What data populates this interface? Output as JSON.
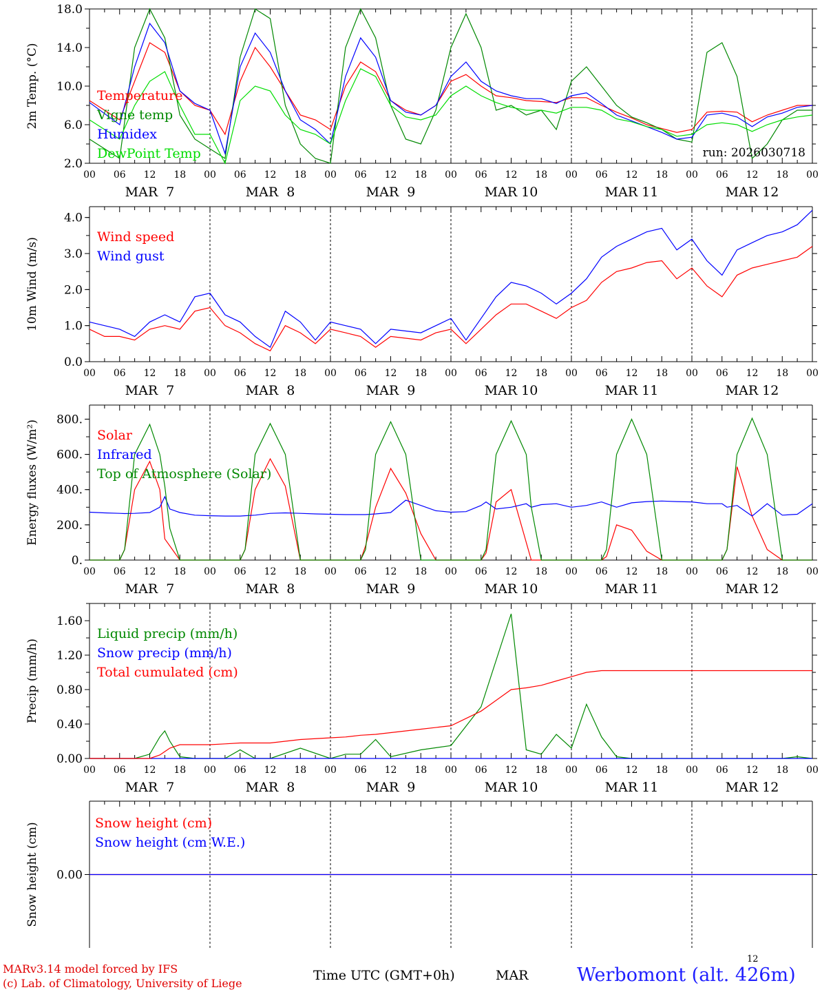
{
  "chart_data": [
    {
      "type": "line",
      "ylabel": "2m Temp. (°C)",
      "ylim": [
        2,
        18
      ],
      "yticks": [
        "2.0",
        "6.0",
        "10.0",
        "14.0",
        "18.0"
      ],
      "annotation": "run: 2026030718",
      "x_hours": [
        0,
        6,
        9,
        12,
        15,
        18,
        21,
        24,
        27,
        30,
        33,
        36,
        39,
        42,
        45,
        48,
        51,
        54,
        57,
        60,
        63,
        66,
        69,
        72,
        75,
        78,
        81,
        84,
        87,
        90,
        93,
        96,
        99,
        102,
        105,
        108,
        111,
        114,
        117,
        120,
        123,
        126,
        129,
        132,
        135,
        138,
        141,
        144
      ],
      "series": [
        {
          "name": "Temperature",
          "color": "#ff0000",
          "values": [
            8.5,
            6.5,
            10.5,
            14.5,
            13.5,
            9.5,
            8.0,
            7.5,
            5.0,
            10.5,
            14.0,
            12.0,
            9.5,
            7.0,
            6.5,
            5.5,
            10.0,
            12.5,
            11.5,
            8.5,
            7.5,
            7.0,
            8.0,
            10.5,
            11.2,
            10.0,
            9.0,
            8.8,
            8.5,
            8.4,
            8.3,
            8.8,
            8.8,
            8.0,
            7.3,
            6.7,
            6.0,
            5.6,
            5.2,
            5.5,
            7.3,
            7.4,
            7.3,
            6.3,
            7.0,
            7.5,
            8.0,
            8.0
          ]
        },
        {
          "name": "Vigne temp",
          "color": "#008800",
          "values": [
            4.5,
            2.5,
            14.0,
            18.5,
            15.0,
            7.0,
            4.5,
            3.5,
            2.5,
            13.0,
            18.5,
            17.0,
            8.0,
            4.0,
            2.5,
            1.5,
            14.0,
            18.5,
            15.0,
            8.0,
            4.5,
            4.0,
            7.5,
            14.0,
            17.5,
            14.0,
            7.5,
            8.0,
            7.0,
            7.5,
            5.5,
            10.5,
            12.0,
            10.0,
            8.0,
            6.8,
            6.2,
            5.5,
            4.5,
            4.2,
            13.5,
            14.5,
            11.0,
            2.5,
            4.0,
            6.5,
            7.5,
            7.5
          ]
        },
        {
          "name": "Humidex",
          "color": "#0000ff",
          "values": [
            8.3,
            6.0,
            12.0,
            16.5,
            14.5,
            9.5,
            8.2,
            7.5,
            3.0,
            12.0,
            15.5,
            13.5,
            9.5,
            6.5,
            5.5,
            4.0,
            11.0,
            15.0,
            13.0,
            8.5,
            7.3,
            7.0,
            8.0,
            11.0,
            12.5,
            10.5,
            9.5,
            9.0,
            8.7,
            8.7,
            8.2,
            9.0,
            9.3,
            8.2,
            7.0,
            6.4,
            5.8,
            5.2,
            4.5,
            4.7,
            7.0,
            7.2,
            6.8,
            5.8,
            6.8,
            7.2,
            7.8,
            8.0
          ]
        },
        {
          "name": "DewPoint Temp",
          "color": "#00dd00",
          "values": [
            6.5,
            4.5,
            8.0,
            10.5,
            11.5,
            8.0,
            5.0,
            5.0,
            2.0,
            8.5,
            10.0,
            9.5,
            7.0,
            5.5,
            5.0,
            4.0,
            8.5,
            11.8,
            11.0,
            8.0,
            6.8,
            6.5,
            7.0,
            9.0,
            10.0,
            9.0,
            8.3,
            7.8,
            7.5,
            7.5,
            7.2,
            7.8,
            7.8,
            7.5,
            6.6,
            6.3,
            5.8,
            5.5,
            4.8,
            5.0,
            6.0,
            6.2,
            6.0,
            5.3,
            6.0,
            6.5,
            6.8,
            7.0
          ]
        }
      ]
    },
    {
      "type": "line",
      "ylabel": "10m Wind (m/s)",
      "ylim": [
        0,
        4.3
      ],
      "yticks": [
        "0.0",
        "1.0",
        "2.0",
        "3.0",
        "4.0"
      ],
      "x_hours": [
        0,
        3,
        6,
        9,
        12,
        15,
        18,
        21,
        24,
        27,
        30,
        33,
        36,
        39,
        42,
        45,
        48,
        51,
        54,
        57,
        60,
        63,
        66,
        69,
        72,
        75,
        78,
        81,
        84,
        87,
        90,
        93,
        96,
        99,
        102,
        105,
        108,
        111,
        114,
        117,
        120,
        123,
        126,
        129,
        132,
        135,
        138,
        141,
        144
      ],
      "series": [
        {
          "name": "Wind speed",
          "color": "#ff0000",
          "values": [
            0.9,
            0.7,
            0.7,
            0.6,
            0.9,
            1.0,
            0.9,
            1.4,
            1.5,
            1.0,
            0.8,
            0.5,
            0.3,
            1.0,
            0.8,
            0.5,
            0.9,
            0.8,
            0.7,
            0.4,
            0.7,
            0.65,
            0.6,
            0.8,
            0.9,
            0.5,
            0.9,
            1.3,
            1.6,
            1.6,
            1.4,
            1.2,
            1.5,
            1.7,
            2.2,
            2.5,
            2.6,
            2.75,
            2.8,
            2.3,
            2.6,
            2.1,
            1.8,
            2.4,
            2.6,
            2.7,
            2.8,
            2.9,
            3.2
          ]
        },
        {
          "name": "Wind gust",
          "color": "#0000ff",
          "values": [
            1.1,
            1.0,
            0.9,
            0.7,
            1.1,
            1.3,
            1.1,
            1.8,
            1.9,
            1.3,
            1.1,
            0.7,
            0.4,
            1.4,
            1.1,
            0.6,
            1.1,
            1.0,
            0.9,
            0.5,
            0.9,
            0.85,
            0.8,
            1.0,
            1.2,
            0.6,
            1.2,
            1.8,
            2.2,
            2.1,
            1.9,
            1.6,
            1.9,
            2.3,
            2.9,
            3.2,
            3.4,
            3.6,
            3.7,
            3.1,
            3.4,
            2.8,
            2.4,
            3.1,
            3.3,
            3.5,
            3.6,
            3.8,
            4.2
          ]
        }
      ]
    },
    {
      "type": "line",
      "ylabel": "Energy fluxes (W/m²)",
      "ylim": [
        0,
        880
      ],
      "yticks": [
        "0.",
        "200.",
        "400.",
        "600.",
        "800."
      ],
      "x_hours": [
        0,
        3,
        6,
        7,
        9,
        12,
        14,
        15,
        16,
        18,
        21,
        24,
        27,
        30,
        31,
        33,
        36,
        39,
        42,
        45,
        48,
        51,
        54,
        55,
        57,
        60,
        63,
        66,
        69,
        72,
        75,
        78,
        79,
        81,
        84,
        87,
        88,
        90,
        93,
        96,
        99,
        102,
        103,
        105,
        108,
        111,
        114,
        117,
        120,
        123,
        126,
        127,
        129,
        132,
        135,
        138,
        141,
        144
      ],
      "series": [
        {
          "name": "Solar",
          "color": "#ff0000",
          "values": [
            0,
            0,
            0,
            60,
            400,
            560,
            400,
            120,
            80,
            0,
            0,
            0,
            0,
            0,
            60,
            400,
            575,
            420,
            0,
            0,
            0,
            0,
            0,
            80,
            300,
            520,
            380,
            150,
            0,
            0,
            0,
            0,
            40,
            330,
            400,
            100,
            0,
            0,
            0,
            0,
            0,
            0,
            20,
            200,
            170,
            50,
            0,
            0,
            0,
            0,
            0,
            60,
            530,
            250,
            60,
            0,
            0,
            0
          ]
        },
        {
          "name": "Infrared",
          "color": "#0000ff",
          "values": [
            272,
            268,
            265,
            264,
            265,
            270,
            300,
            360,
            290,
            270,
            255,
            252,
            250,
            250,
            252,
            255,
            265,
            268,
            265,
            262,
            260,
            258,
            258,
            258,
            262,
            270,
            340,
            310,
            280,
            272,
            275,
            310,
            330,
            290,
            300,
            320,
            300,
            315,
            320,
            300,
            310,
            330,
            320,
            300,
            325,
            332,
            335,
            332,
            330,
            320,
            320,
            300,
            310,
            250,
            320,
            255,
            260,
            320
          ]
        },
        {
          "name": "Top of Atmosphere (Solar)",
          "color": "#008800",
          "values": [
            0,
            0,
            0,
            60,
            600,
            770,
            600,
            420,
            180,
            0,
            0,
            0,
            0,
            0,
            60,
            600,
            775,
            600,
            0,
            0,
            0,
            0,
            0,
            60,
            600,
            785,
            600,
            0,
            0,
            0,
            0,
            0,
            60,
            600,
            790,
            600,
            300,
            0,
            0,
            0,
            0,
            0,
            60,
            600,
            800,
            600,
            0,
            0,
            0,
            0,
            0,
            60,
            600,
            805,
            600,
            0,
            0,
            0
          ]
        }
      ]
    },
    {
      "type": "line",
      "ylabel": "Precip (mm/h)",
      "ylim": [
        0,
        1.8
      ],
      "yticks": [
        "0.00",
        "0.40",
        "0.80",
        "1.20",
        "1.60"
      ],
      "x_hours": [
        0,
        9,
        12,
        14,
        15,
        16,
        18,
        21,
        24,
        27,
        30,
        33,
        36,
        42,
        48,
        51,
        54,
        57,
        60,
        66,
        72,
        78,
        84,
        87,
        90,
        93,
        96,
        99,
        102,
        105,
        108,
        111,
        114,
        117,
        120,
        123,
        126,
        129,
        132,
        135,
        138,
        141,
        144
      ],
      "series": [
        {
          "name": "Liquid precip (mm/h)",
          "color": "#008800",
          "values": [
            0,
            0,
            0.05,
            0.25,
            0.32,
            0.2,
            0.02,
            0,
            0,
            0,
            0.1,
            0,
            0,
            0.12,
            0,
            0.05,
            0.05,
            0.22,
            0.02,
            0.1,
            0.15,
            0.6,
            1.68,
            0.1,
            0.05,
            0.28,
            0.12,
            0.63,
            0.25,
            0.02,
            0,
            0,
            0,
            0,
            0,
            0,
            0,
            0,
            0,
            0,
            0,
            0.02,
            0
          ]
        },
        {
          "name": "Snow precip (mm/h)",
          "color": "#0000ff",
          "values": [
            0,
            0,
            0,
            0,
            0,
            0,
            0,
            0,
            0,
            0,
            0,
            0,
            0,
            0,
            0,
            0,
            0,
            0,
            0,
            0,
            0,
            0,
            0,
            0,
            0,
            0,
            0,
            0,
            0,
            0,
            0,
            0,
            0,
            0,
            0,
            0,
            0,
            0,
            0,
            0,
            0,
            0,
            0
          ]
        },
        {
          "name": "Total cumulated (cm)",
          "color": "#ff0000",
          "values": [
            0,
            0,
            0,
            0.04,
            0.08,
            0.12,
            0.16,
            0.16,
            0.16,
            0.17,
            0.18,
            0.18,
            0.18,
            0.22,
            0.24,
            0.25,
            0.27,
            0.28,
            0.3,
            0.34,
            0.38,
            0.55,
            0.8,
            0.82,
            0.85,
            0.9,
            0.95,
            1.0,
            1.02,
            1.02,
            1.02,
            1.02,
            1.02,
            1.02,
            1.02,
            1.02,
            1.02,
            1.02,
            1.02,
            1.02,
            1.02,
            1.02,
            1.02
          ]
        }
      ]
    },
    {
      "type": "line",
      "ylabel": "Snow height (cm)",
      "ylim": [
        -1,
        1
      ],
      "yticks": [
        "0.00"
      ],
      "x_hours": [
        0,
        144
      ],
      "series": [
        {
          "name": "Snow height (cm)",
          "color": "#ff0000",
          "values": [
            0,
            0
          ]
        },
        {
          "name": "Snow height (cm W.E.)",
          "color": "#0000ff",
          "values": [
            0,
            0
          ]
        }
      ]
    }
  ],
  "x_axis": {
    "hour_labels": [
      "00",
      "06",
      "12",
      "18",
      "00",
      "06",
      "12",
      "18",
      "00",
      "06",
      "12",
      "18",
      "00",
      "06",
      "12",
      "18",
      "00",
      "06",
      "12",
      "18",
      "00",
      "06",
      "12",
      "18",
      "00"
    ],
    "day_labels": [
      "MAR  7",
      "MAR  8",
      "MAR  9",
      "MAR 10",
      "MAR 11",
      "MAR 12"
    ],
    "bottom_hour": "12",
    "bottom_month": "MAR"
  },
  "footer": {
    "credit_line1": "MARv3.14 model forced by IFS",
    "credit_line2": "(c) Lab. of Climatology, University of Liege",
    "time_label": "Time UTC (GMT+0h)",
    "station": "Werbomont (alt. 426m)"
  }
}
